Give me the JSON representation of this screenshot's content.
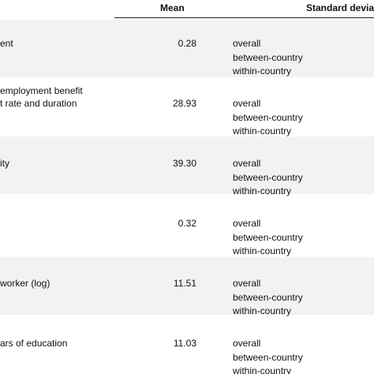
{
  "table": {
    "header": [
      "Mean",
      "Standard devia"
    ],
    "rows": [
      {
        "label": [
          "ent"
        ],
        "mean": "0.28",
        "sd": [
          "overall",
          "between-country",
          "within-country"
        ]
      },
      {
        "label": [
          "employment benefit",
          "t rate and duration"
        ],
        "mean": "28.93",
        "sd": [
          "overall",
          "between-country",
          "within-country"
        ]
      },
      {
        "label": [
          "ity"
        ],
        "mean": "39.30",
        "sd": [
          "overall",
          "between-country",
          "within-country"
        ]
      },
      {
        "label": [],
        "mean": "0.32",
        "sd": [
          "overall",
          "between-country",
          "within-country"
        ]
      },
      {
        "label": [
          "worker (log)"
        ],
        "mean": "11.51",
        "sd": [
          "overall",
          "between-country",
          "within-country"
        ]
      },
      {
        "label": [
          "ars of education"
        ],
        "mean": "11.03",
        "sd": [
          "overall",
          "between-country",
          "within-country"
        ]
      }
    ]
  }
}
